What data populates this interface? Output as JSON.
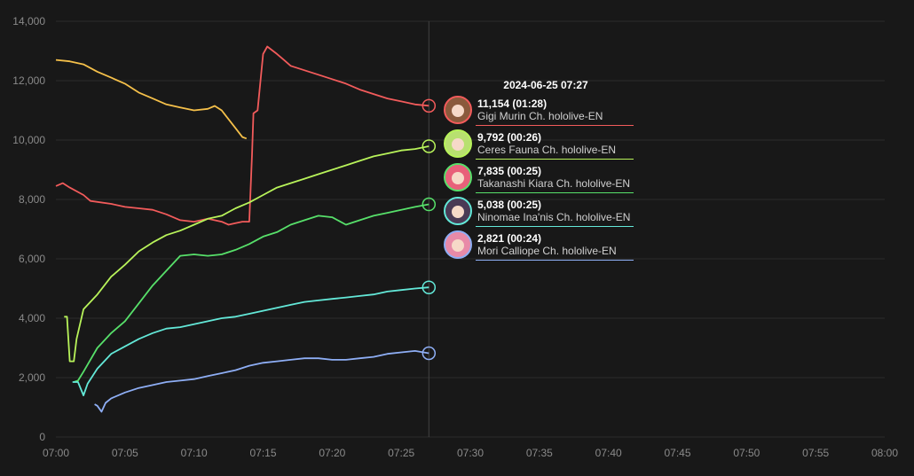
{
  "tooltip": {
    "date": "2024-06-25 07:27",
    "rows": [
      {
        "value": "11,154",
        "duration": "(01:28)",
        "name": "Gigi Murin Ch. hololive-EN",
        "color": "#f25b5b",
        "icon": "avatar-gigi"
      },
      {
        "value": "9,792",
        "duration": "(00:26)",
        "name": "Ceres Fauna Ch. hololive-EN",
        "color": "#b8f35a",
        "icon": "avatar-fauna"
      },
      {
        "value": "7,835",
        "duration": "(00:25)",
        "name": "Takanashi Kiara Ch. hololive-EN",
        "color": "#57e06a",
        "icon": "avatar-kiara"
      },
      {
        "value": "5,038",
        "duration": "(00:25)",
        "name": "Ninomae Ina'nis Ch. hololive-EN",
        "color": "#63e8d8",
        "icon": "avatar-ina"
      },
      {
        "value": "2,821",
        "duration": "(00:24)",
        "name": "Mori Calliope Ch. hololive-EN",
        "color": "#8eaef5",
        "icon": "avatar-calli"
      }
    ]
  },
  "chart_data": {
    "type": "line",
    "title": "",
    "xlabel": "",
    "ylabel": "",
    "ylim": [
      0,
      14000
    ],
    "xlim": [
      "07:00",
      "08:00"
    ],
    "y_ticks": [
      "0",
      "2,000",
      "4,000",
      "6,000",
      "8,000",
      "10,000",
      "12,000",
      "14,000"
    ],
    "x_ticks": [
      "07:00",
      "07:05",
      "07:10",
      "07:15",
      "07:20",
      "07:25",
      "07:30",
      "07:35",
      "07:40",
      "07:45",
      "07:50",
      "07:55",
      "08:00"
    ],
    "grid": true,
    "cursor_x": "07:27",
    "series": [
      {
        "key": "orange",
        "color": "#f5c04a",
        "points": [
          [
            "07:00",
            12700
          ],
          [
            "07:01",
            12650
          ],
          [
            "07:02",
            12550
          ],
          [
            "07:03",
            12300
          ],
          [
            "07:04",
            12100
          ],
          [
            "07:05",
            11900
          ],
          [
            "07:06",
            11600
          ],
          [
            "07:07",
            11400
          ],
          [
            "07:08",
            11200
          ],
          [
            "07:09",
            11100
          ],
          [
            "07:10",
            11000
          ],
          [
            "07:11",
            11050
          ],
          [
            "07:11.5",
            11150
          ],
          [
            "07:12",
            11000
          ],
          [
            "07:12.5",
            10700
          ],
          [
            "07:13",
            10400
          ],
          [
            "07:13.5",
            10100
          ],
          [
            "07:13.8",
            10050
          ]
        ]
      },
      {
        "key": "gigi",
        "color": "#f25b5b",
        "points": [
          [
            "07:00",
            8450
          ],
          [
            "07:00.5",
            8550
          ],
          [
            "07:01",
            8400
          ],
          [
            "07:02",
            8150
          ],
          [
            "07:02.5",
            7950
          ],
          [
            "07:04",
            7850
          ],
          [
            "07:05",
            7750
          ],
          [
            "07:06",
            7700
          ],
          [
            "07:07",
            7650
          ],
          [
            "07:08",
            7500
          ],
          [
            "07:09",
            7300
          ],
          [
            "07:10",
            7250
          ],
          [
            "07:11",
            7350
          ],
          [
            "07:12",
            7250
          ],
          [
            "07:12.5",
            7150
          ],
          [
            "07:13",
            7200
          ],
          [
            "07:13.5",
            7250
          ],
          [
            "07:14",
            7250
          ],
          [
            "07:14.2",
            9500
          ],
          [
            "07:14.3",
            10900
          ],
          [
            "07:14.6",
            11000
          ],
          [
            "07:15",
            12900
          ],
          [
            "07:15.3",
            13150
          ],
          [
            "07:16",
            12900
          ],
          [
            "07:16.5",
            12700
          ],
          [
            "07:17",
            12500
          ],
          [
            "07:18",
            12350
          ],
          [
            "07:19",
            12200
          ],
          [
            "07:20",
            12050
          ],
          [
            "07:21",
            11900
          ],
          [
            "07:22",
            11700
          ],
          [
            "07:23",
            11550
          ],
          [
            "07:24",
            11400
          ],
          [
            "07:25",
            11300
          ],
          [
            "07:26",
            11200
          ],
          [
            "07:27",
            11154
          ]
        ]
      },
      {
        "key": "fauna",
        "color": "#b8f35a",
        "points": [
          [
            "07:00.6",
            4050
          ],
          [
            "07:00.8",
            4050
          ],
          [
            "07:01",
            2550
          ],
          [
            "07:01.3",
            2550
          ],
          [
            "07:01.5",
            3300
          ],
          [
            "07:02",
            4300
          ],
          [
            "07:03",
            4800
          ],
          [
            "07:04",
            5400
          ],
          [
            "07:05",
            5800
          ],
          [
            "07:06",
            6250
          ],
          [
            "07:07",
            6550
          ],
          [
            "07:08",
            6800
          ],
          [
            "07:09",
            6950
          ],
          [
            "07:10",
            7150
          ],
          [
            "07:11",
            7350
          ],
          [
            "07:12",
            7450
          ],
          [
            "07:13",
            7700
          ],
          [
            "07:14",
            7900
          ],
          [
            "07:15",
            8150
          ],
          [
            "07:16",
            8400
          ],
          [
            "07:17",
            8550
          ],
          [
            "07:18",
            8700
          ],
          [
            "07:19",
            8850
          ],
          [
            "07:20",
            9000
          ],
          [
            "07:21",
            9150
          ],
          [
            "07:22",
            9300
          ],
          [
            "07:23",
            9450
          ],
          [
            "07:24",
            9550
          ],
          [
            "07:25",
            9650
          ],
          [
            "07:26",
            9700
          ],
          [
            "07:27",
            9792
          ]
        ]
      },
      {
        "key": "kiara",
        "color": "#57e06a",
        "points": [
          [
            "07:01.3",
            1850
          ],
          [
            "07:01.6",
            1900
          ],
          [
            "07:02",
            2200
          ],
          [
            "07:03",
            3000
          ],
          [
            "07:04",
            3500
          ],
          [
            "07:05",
            3900
          ],
          [
            "07:06",
            4500
          ],
          [
            "07:07",
            5100
          ],
          [
            "07:08",
            5600
          ],
          [
            "07:09",
            6100
          ],
          [
            "07:10",
            6150
          ],
          [
            "07:11",
            6100
          ],
          [
            "07:12",
            6150
          ],
          [
            "07:13",
            6300
          ],
          [
            "07:14",
            6500
          ],
          [
            "07:15",
            6750
          ],
          [
            "07:16",
            6900
          ],
          [
            "07:17",
            7150
          ],
          [
            "07:18",
            7300
          ],
          [
            "07:19",
            7450
          ],
          [
            "07:20",
            7400
          ],
          [
            "07:21",
            7150
          ],
          [
            "07:22",
            7300
          ],
          [
            "07:23",
            7450
          ],
          [
            "07:24",
            7550
          ],
          [
            "07:25",
            7650
          ],
          [
            "07:26",
            7750
          ],
          [
            "07:27",
            7835
          ]
        ]
      },
      {
        "key": "ina",
        "color": "#63e8d8",
        "points": [
          [
            "07:01.2",
            1850
          ],
          [
            "07:01.6",
            1850
          ],
          [
            "07:02",
            1400
          ],
          [
            "07:02.3",
            1800
          ],
          [
            "07:03",
            2300
          ],
          [
            "07:04",
            2800
          ],
          [
            "07:05",
            3050
          ],
          [
            "07:06",
            3300
          ],
          [
            "07:07",
            3500
          ],
          [
            "07:08",
            3650
          ],
          [
            "07:09",
            3700
          ],
          [
            "07:10",
            3800
          ],
          [
            "07:11",
            3900
          ],
          [
            "07:12",
            4000
          ],
          [
            "07:13",
            4050
          ],
          [
            "07:14",
            4150
          ],
          [
            "07:15",
            4250
          ],
          [
            "07:16",
            4350
          ],
          [
            "07:17",
            4450
          ],
          [
            "07:18",
            4550
          ],
          [
            "07:19",
            4600
          ],
          [
            "07:20",
            4650
          ],
          [
            "07:21",
            4700
          ],
          [
            "07:22",
            4750
          ],
          [
            "07:23",
            4800
          ],
          [
            "07:24",
            4900
          ],
          [
            "07:25",
            4950
          ],
          [
            "07:26",
            5000
          ],
          [
            "07:27",
            5038
          ]
        ]
      },
      {
        "key": "calli",
        "color": "#8eaef5",
        "points": [
          [
            "07:02.8",
            1100
          ],
          [
            "07:03",
            1050
          ],
          [
            "07:03.3",
            850
          ],
          [
            "07:03.6",
            1150
          ],
          [
            "07:04",
            1300
          ],
          [
            "07:05",
            1500
          ],
          [
            "07:06",
            1650
          ],
          [
            "07:07",
            1750
          ],
          [
            "07:08",
            1850
          ],
          [
            "07:09",
            1900
          ],
          [
            "07:10",
            1950
          ],
          [
            "07:11",
            2050
          ],
          [
            "07:12",
            2150
          ],
          [
            "07:13",
            2250
          ],
          [
            "07:14",
            2400
          ],
          [
            "07:15",
            2500
          ],
          [
            "07:16",
            2550
          ],
          [
            "07:17",
            2600
          ],
          [
            "07:18",
            2650
          ],
          [
            "07:19",
            2650
          ],
          [
            "07:20",
            2600
          ],
          [
            "07:21",
            2600
          ],
          [
            "07:22",
            2650
          ],
          [
            "07:23",
            2700
          ],
          [
            "07:24",
            2800
          ],
          [
            "07:25",
            2850
          ],
          [
            "07:26",
            2900
          ],
          [
            "07:27",
            2821
          ]
        ]
      }
    ]
  }
}
